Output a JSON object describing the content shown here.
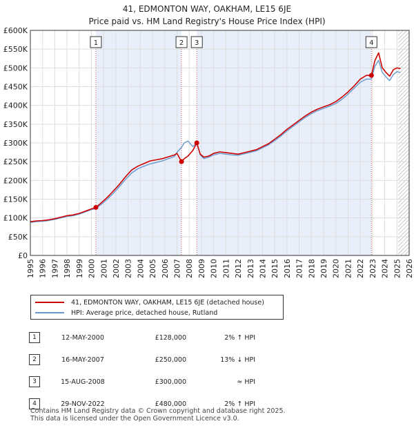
{
  "chart_data": {
    "type": "line",
    "title": "41, EDMONTON WAY, OAKHAM, LE15 6JE",
    "subtitle": "Price paid vs. HM Land Registry's House Price Index (HPI)",
    "xlim": [
      1995,
      2026
    ],
    "ylim": [
      0,
      600000
    ],
    "x_ticks": [
      "1995",
      "1996",
      "1997",
      "1998",
      "1999",
      "2000",
      "2001",
      "2002",
      "2003",
      "2004",
      "2005",
      "2006",
      "2007",
      "2008",
      "2009",
      "2010",
      "2011",
      "2012",
      "2013",
      "2014",
      "2015",
      "2016",
      "2017",
      "2018",
      "2019",
      "2020",
      "2021",
      "2022",
      "2023",
      "2024",
      "2025",
      "2026"
    ],
    "y_ticks": [
      {
        "value": 0,
        "label": "£0"
      },
      {
        "value": 50000,
        "label": "£50K"
      },
      {
        "value": 100000,
        "label": "£100K"
      },
      {
        "value": 150000,
        "label": "£150K"
      },
      {
        "value": 200000,
        "label": "£200K"
      },
      {
        "value": 250000,
        "label": "£250K"
      },
      {
        "value": 300000,
        "label": "£300K"
      },
      {
        "value": 350000,
        "label": "£350K"
      },
      {
        "value": 400000,
        "label": "£400K"
      },
      {
        "value": 450000,
        "label": "£450K"
      },
      {
        "value": 500000,
        "label": "£500K"
      },
      {
        "value": 550000,
        "label": "£550K"
      },
      {
        "value": 600000,
        "label": "£600K"
      }
    ],
    "series": [
      {
        "name": "41, EDMONTON WAY, OAKHAM, LE15 6JE (detached house)",
        "color": "#cc0000",
        "x": [
          1995.0,
          1995.5,
          1996.0,
          1996.5,
          1997.0,
          1997.5,
          1998.0,
          1998.5,
          1999.0,
          1999.5,
          2000.0,
          2000.36,
          2000.8,
          2001.3,
          2001.8,
          2002.3,
          2002.8,
          2003.3,
          2003.8,
          2004.3,
          2004.8,
          2005.3,
          2005.8,
          2006.3,
          2006.8,
          2007.0,
          2007.37,
          2007.6,
          2007.9,
          2008.3,
          2008.62,
          2008.9,
          2009.2,
          2009.6,
          2010.0,
          2010.5,
          2011.0,
          2011.5,
          2012.0,
          2012.5,
          2013.0,
          2013.5,
          2014.0,
          2014.5,
          2015.0,
          2015.5,
          2016.0,
          2016.5,
          2017.0,
          2017.5,
          2018.0,
          2018.5,
          2019.0,
          2019.5,
          2020.0,
          2020.5,
          2021.0,
          2021.5,
          2022.0,
          2022.5,
          2022.91,
          2023.2,
          2023.5,
          2023.8,
          2024.1,
          2024.4,
          2024.7,
          2025.0,
          2025.3
        ],
        "values": [
          90000,
          92000,
          93000,
          95000,
          98000,
          102000,
          106000,
          108000,
          112000,
          118000,
          124000,
          128000,
          140000,
          155000,
          172000,
          190000,
          210000,
          228000,
          238000,
          245000,
          252000,
          255000,
          258000,
          263000,
          268000,
          272000,
          250000,
          258000,
          265000,
          280000,
          300000,
          270000,
          262000,
          265000,
          272000,
          276000,
          274000,
          272000,
          270000,
          274000,
          278000,
          282000,
          290000,
          298000,
          310000,
          322000,
          336000,
          348000,
          360000,
          372000,
          382000,
          390000,
          396000,
          402000,
          410000,
          422000,
          436000,
          452000,
          470000,
          480000,
          480000,
          520000,
          540000,
          500000,
          488000,
          478000,
          495000,
          500000,
          498000
        ]
      },
      {
        "name": "HPI: Average price, detached house, Rutland",
        "color": "#6699cc",
        "x": [
          1995.0,
          1995.5,
          1996.0,
          1996.5,
          1997.0,
          1997.5,
          1998.0,
          1998.5,
          1999.0,
          1999.5,
          2000.0,
          2000.36,
          2000.8,
          2001.3,
          2001.8,
          2002.3,
          2002.8,
          2003.3,
          2003.8,
          2004.3,
          2004.8,
          2005.3,
          2005.8,
          2006.3,
          2006.8,
          2007.0,
          2007.37,
          2007.6,
          2007.9,
          2008.3,
          2008.62,
          2008.9,
          2009.2,
          2009.6,
          2010.0,
          2010.5,
          2011.0,
          2011.5,
          2012.0,
          2012.5,
          2013.0,
          2013.5,
          2014.0,
          2014.5,
          2015.0,
          2015.5,
          2016.0,
          2016.5,
          2017.0,
          2017.5,
          2018.0,
          2018.5,
          2019.0,
          2019.5,
          2020.0,
          2020.5,
          2021.0,
          2021.5,
          2022.0,
          2022.5,
          2022.91,
          2023.2,
          2023.5,
          2023.8,
          2024.1,
          2024.4,
          2024.7,
          2025.0,
          2025.3
        ],
        "values": [
          88000,
          90000,
          91000,
          93000,
          96000,
          100000,
          104000,
          106000,
          110000,
          116000,
          122000,
          125000,
          136000,
          150000,
          166000,
          184000,
          203000,
          220000,
          231000,
          238000,
          244000,
          248000,
          252000,
          258000,
          264000,
          275000,
          288000,
          300000,
          305000,
          290000,
          300000,
          268000,
          258000,
          262000,
          268000,
          272000,
          270000,
          268000,
          267000,
          271000,
          275000,
          279000,
          287000,
          295000,
          306000,
          318000,
          332000,
          344000,
          356000,
          368000,
          378000,
          386000,
          392000,
          398000,
          405000,
          416000,
          430000,
          446000,
          462000,
          470000,
          470000,
          505000,
          520000,
          488000,
          476000,
          466000,
          482000,
          490000,
          488000
        ]
      }
    ],
    "sales": [
      {
        "num": "1",
        "date": "12-MAY-2000",
        "price": "£128,000",
        "relation": "2% ↑ HPI",
        "x": 2000.36,
        "value": 128000
      },
      {
        "num": "2",
        "date": "16-MAY-2007",
        "price": "£250,000",
        "relation": "13% ↓ HPI",
        "x": 2007.37,
        "value": 250000
      },
      {
        "num": "3",
        "date": "15-AUG-2008",
        "price": "£300,000",
        "relation": "≈ HPI",
        "x": 2008.62,
        "value": 300000
      },
      {
        "num": "4",
        "date": "29-NOV-2022",
        "price": "£480,000",
        "relation": "2% ↑ HPI",
        "x": 2022.91,
        "value": 480000
      }
    ],
    "shaded_ranges": [
      [
        2000.36,
        2007.37
      ],
      [
        2008.62,
        2022.91
      ]
    ],
    "future_hatch_from": 2025.1
  },
  "legend": {
    "property_label": "41, EDMONTON WAY, OAKHAM, LE15 6JE (detached house)",
    "hpi_label": "HPI: Average price, detached house, Rutland"
  },
  "footer": {
    "line1": "Contains HM Land Registry data © Crown copyright and database right 2025.",
    "line2": "This data is licensed under the Open Government Licence v3.0."
  }
}
